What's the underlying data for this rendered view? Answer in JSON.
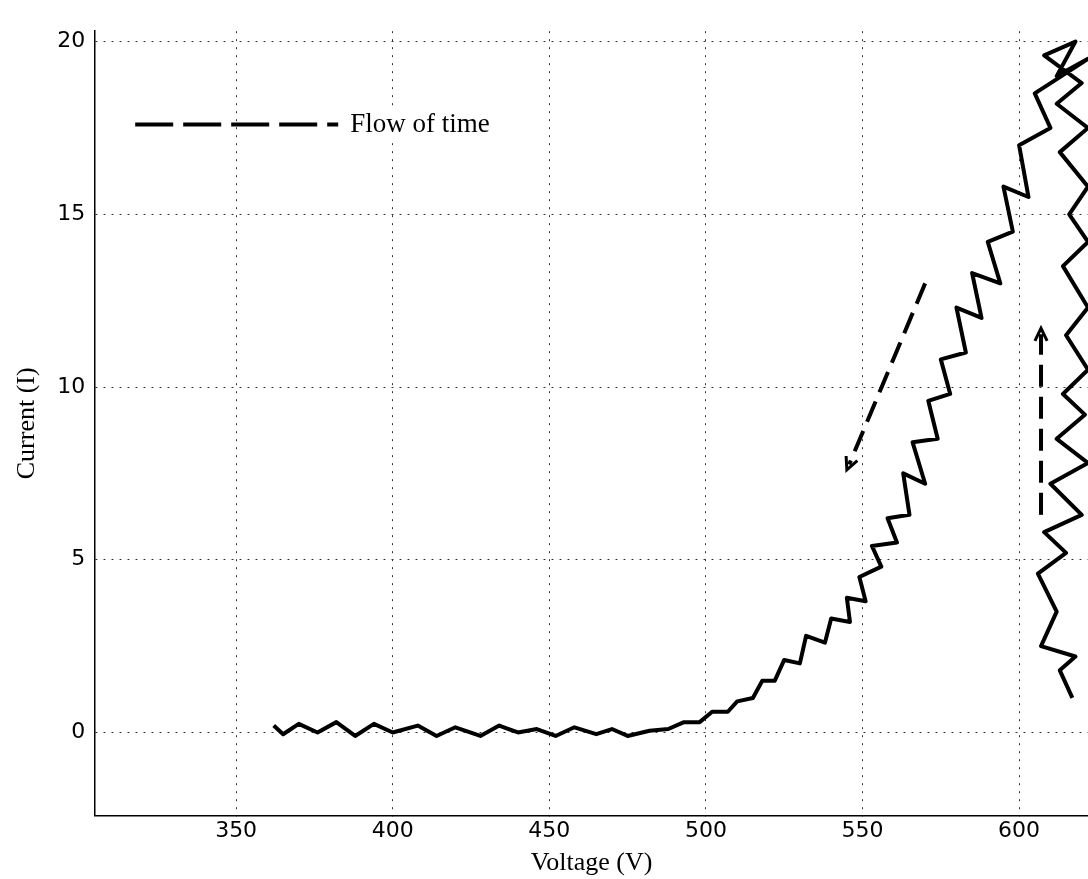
{
  "chart_data": {
    "type": "line",
    "xlabel": "Voltage (V)",
    "ylabel": "Current (I)",
    "annotations": [
      "Flow of time"
    ],
    "xlim": [
      305,
      622
    ],
    "ylim": [
      -2.4,
      20.3
    ],
    "xticks": [
      350,
      400,
      450,
      500,
      550,
      600
    ],
    "yticks": [
      0,
      5,
      10,
      15,
      20
    ],
    "grid": true,
    "legend": false,
    "marker": "none",
    "line_style": "solid",
    "series": [
      {
        "color": "#000000",
        "x": [
          617,
          613,
          618,
          607,
          612,
          606,
          615,
          608,
          620,
          610,
          622,
          612,
          621,
          614,
          622,
          615,
          622,
          614,
          622,
          616,
          622,
          613,
          622,
          612,
          620,
          608,
          618,
          612,
          622,
          605,
          610,
          600,
          603,
          595,
          598,
          590,
          594,
          585,
          588,
          580,
          583,
          575,
          578,
          571,
          574,
          566,
          570,
          563,
          565,
          558,
          561,
          553,
          556,
          549,
          551,
          545,
          546,
          540,
          538,
          532,
          530,
          525,
          522,
          518,
          515,
          510,
          507,
          502,
          498,
          493,
          488,
          482,
          475,
          470,
          465,
          458,
          452,
          446,
          440,
          434,
          428,
          420,
          414,
          408,
          400,
          394,
          388,
          382,
          376,
          370,
          365,
          362
        ],
        "values": [
          1,
          1.8,
          2.2,
          2.5,
          3.5,
          4.6,
          5.2,
          5.8,
          6.3,
          7.2,
          7.8,
          8.5,
          9.2,
          9.8,
          10.5,
          11.5,
          12.3,
          13.5,
          14.2,
          15,
          15.8,
          16.8,
          17.5,
          18.2,
          18.8,
          19.6,
          20,
          19,
          19.5,
          18.5,
          17.5,
          17,
          15.5,
          15.8,
          14.5,
          14.2,
          13,
          13.3,
          12,
          12.3,
          11,
          10.8,
          9.8,
          9.6,
          8.5,
          8.4,
          7.2,
          7.5,
          6.3,
          6.2,
          5.5,
          5.4,
          4.8,
          4.5,
          3.8,
          3.9,
          3.2,
          3.3,
          2.6,
          2.8,
          2,
          2.1,
          1.5,
          1.5,
          1,
          0.9,
          0.6,
          0.6,
          0.3,
          0.3,
          0.1,
          0.05,
          -0.1,
          0.1,
          -0.05,
          0.15,
          -0.1,
          0.1,
          0,
          0.2,
          -0.1,
          0.15,
          -0.1,
          0.2,
          0,
          0.25,
          -0.1,
          0.3,
          0,
          0.25,
          -0.05,
          0.2
        ]
      }
    ]
  }
}
